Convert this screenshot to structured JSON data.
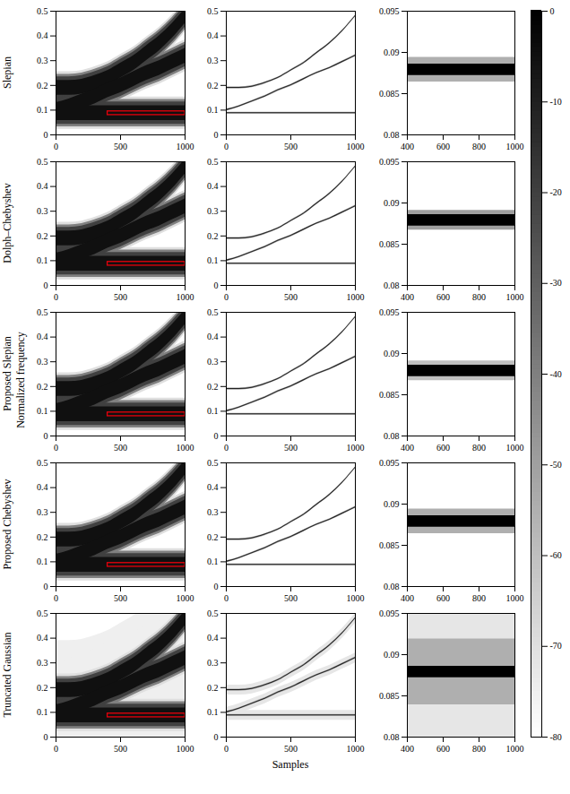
{
  "chart_data": {
    "type": "spectrogram",
    "y_label": "Normalized frequency",
    "x_label": "Samples",
    "colorbar": {
      "lim": [
        -80,
        0
      ],
      "ticks": [
        0,
        -10,
        -20,
        -30,
        -40,
        -50,
        -60,
        -70,
        -80
      ],
      "colors": [
        "#ffffff",
        "#000000"
      ]
    },
    "components": [
      {
        "x": [
          0,
          100,
          200,
          300,
          400,
          500,
          600,
          700,
          800,
          900,
          1000
        ],
        "freq": [
          0.19,
          0.19,
          0.195,
          0.21,
          0.23,
          0.26,
          0.29,
          0.33,
          0.37,
          0.42,
          0.48
        ]
      },
      {
        "x": [
          0,
          100,
          200,
          300,
          400,
          500,
          600,
          700,
          800,
          900,
          1000
        ],
        "freq": [
          0.1,
          0.115,
          0.135,
          0.155,
          0.18,
          0.2,
          0.225,
          0.25,
          0.27,
          0.295,
          0.32
        ]
      },
      {
        "x": [
          0,
          100,
          200,
          300,
          400,
          500,
          600,
          700,
          800,
          900,
          1000
        ],
        "freq": [
          0.0879,
          0.0879,
          0.0879,
          0.0879,
          0.0879,
          0.0879,
          0.0879,
          0.0879,
          0.0879,
          0.0879,
          0.0879
        ]
      }
    ],
    "columns": [
      {
        "xlim": [
          0,
          1000
        ],
        "xticks": [
          0,
          500,
          1000
        ],
        "ylim": [
          0,
          0.5
        ],
        "yticks": [
          0,
          0.1,
          0.2,
          0.3,
          0.4,
          0.5
        ],
        "zoom_box": {
          "x": [
            400,
            1000
          ],
          "y": [
            0.08,
            0.095
          ],
          "color": "#e8000b"
        }
      },
      {
        "xlim": [
          0,
          1000
        ],
        "xticks": [
          0,
          500,
          1000
        ],
        "ylim": [
          0,
          0.5
        ],
        "yticks": [
          0,
          0.1,
          0.2,
          0.3,
          0.4,
          0.5
        ]
      },
      {
        "xlim": [
          400,
          1000
        ],
        "xticks": [
          400,
          600,
          800,
          1000
        ],
        "ylim": [
          0.08,
          0.095
        ],
        "yticks": [
          0.08,
          0.085,
          0.09,
          0.095
        ]
      }
    ],
    "rows": [
      {
        "name": "Slepian",
        "bands": [
          [
            {
              "db": -70,
              "half_width": 0.065
            },
            {
              "db": -40,
              "half_width": 0.055
            },
            {
              "db": -20,
              "half_width": 0.045
            },
            {
              "db": -5,
              "half_width": 0.03
            }
          ],
          [
            {
              "db": -50,
              "half_width": 0.004
            },
            {
              "db": -10,
              "half_width": 0.002
            }
          ],
          [
            {
              "db": -55,
              "half_width": 0.0015
            },
            {
              "db": 0,
              "half_width": 0.0007
            }
          ]
        ]
      },
      {
        "name": "Dolph–Chebyshev",
        "bands": [
          [
            {
              "db": -70,
              "half_width": 0.065
            },
            {
              "db": -40,
              "half_width": 0.055
            },
            {
              "db": -20,
              "half_width": 0.045
            },
            {
              "db": -5,
              "half_width": 0.03
            }
          ],
          [
            {
              "db": -50,
              "half_width": 0.004
            },
            {
              "db": -10,
              "half_width": 0.002
            }
          ],
          [
            {
              "db": -50,
              "half_width": 0.0012
            },
            {
              "db": 0,
              "half_width": 0.0007
            }
          ]
        ]
      },
      {
        "name": "Proposed Slepian",
        "bands": [
          [
            {
              "db": -70,
              "half_width": 0.065
            },
            {
              "db": -40,
              "half_width": 0.055
            },
            {
              "db": -20,
              "half_width": 0.045
            },
            {
              "db": -5,
              "half_width": 0.03
            }
          ],
          [
            {
              "db": -50,
              "half_width": 0.004
            },
            {
              "db": -10,
              "half_width": 0.002
            }
          ],
          [
            {
              "db": -60,
              "half_width": 0.0012
            },
            {
              "db": 0,
              "half_width": 0.0007
            }
          ]
        ]
      },
      {
        "name": "Proposed Chebyshev",
        "bands": [
          [
            {
              "db": -70,
              "half_width": 0.065
            },
            {
              "db": -40,
              "half_width": 0.055
            },
            {
              "db": -20,
              "half_width": 0.045
            },
            {
              "db": -5,
              "half_width": 0.03
            }
          ],
          [
            {
              "db": -50,
              "half_width": 0.004
            },
            {
              "db": -10,
              "half_width": 0.002
            }
          ],
          [
            {
              "db": -55,
              "half_width": 0.0015
            },
            {
              "db": 0,
              "half_width": 0.0007
            }
          ]
        ]
      },
      {
        "name": "Truncated Gaussian",
        "bands": [
          [
            {
              "db": -75,
              "half_width": 0.2
            },
            {
              "db": -70,
              "half_width": 0.065
            },
            {
              "db": -40,
              "half_width": 0.055
            },
            {
              "db": -20,
              "half_width": 0.045
            },
            {
              "db": -5,
              "half_width": 0.03
            }
          ],
          [
            {
              "db": -72,
              "half_width": 0.02
            },
            {
              "db": -50,
              "half_width": 0.004
            },
            {
              "db": -10,
              "half_width": 0.002
            }
          ],
          [
            {
              "db": -72,
              "half_width": 0.008
            },
            {
              "db": -55,
              "half_width": 0.004
            },
            {
              "db": 0,
              "half_width": 0.0007
            }
          ]
        ]
      }
    ]
  }
}
